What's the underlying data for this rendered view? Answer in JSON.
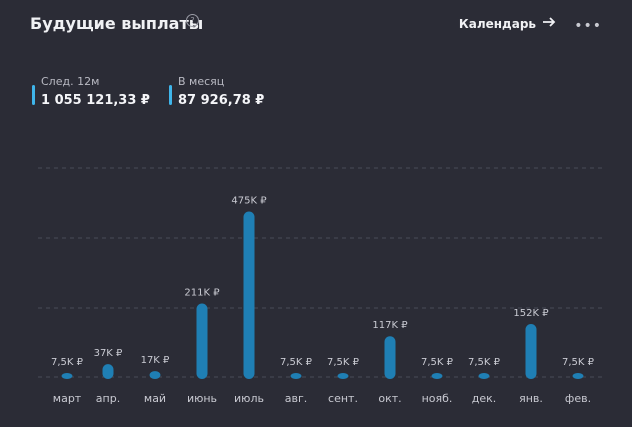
{
  "header": {
    "title": "Будущие выплаты",
    "help_icon": "question-circle-icon",
    "calendar_label": "Календарь",
    "arrow_icon": "arrow-right-icon",
    "more_icon": "more-horizontal-icon"
  },
  "stats": [
    {
      "label": "След. 12м",
      "value": "1 055 121,33 ₽"
    },
    {
      "label": "В месяц",
      "value": "87 926,78 ₽"
    }
  ],
  "colors": {
    "background": "#2b2c36",
    "bar": "#1f7fb4",
    "accent": "#3fb5ea",
    "gridline": "#4a4c58"
  },
  "chart_data": {
    "type": "bar",
    "categories": [
      "март",
      "апр.",
      "май",
      "июнь",
      "июль",
      "авг.",
      "сент.",
      "окт.",
      "нояб.",
      "дек.",
      "янв.",
      "фев."
    ],
    "values": [
      7500,
      37000,
      17000,
      211000,
      475000,
      7500,
      7500,
      117000,
      7500,
      7500,
      152000,
      7500
    ],
    "labels": [
      "7,5K ₽",
      "37K ₽",
      "17K ₽",
      "211K ₽",
      "475K ₽",
      "7,5K ₽",
      "7,5K ₽",
      "117K ₽",
      "7,5K ₽",
      "7,5K ₽",
      "152K ₽",
      "7,5K ₽"
    ],
    "ylim": [
      0,
      600000
    ],
    "grid": true
  }
}
